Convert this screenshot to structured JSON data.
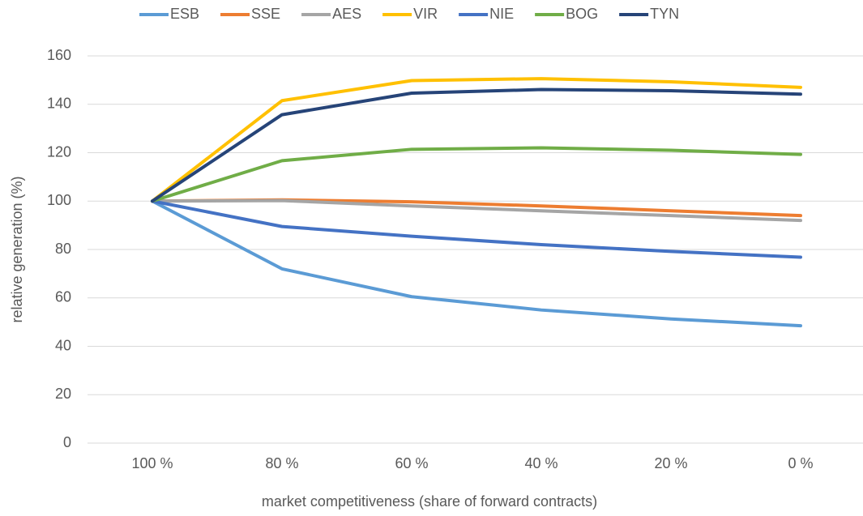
{
  "chart_data": {
    "type": "line",
    "xlabel": "market competitiveness (share of forward contracts)",
    "ylabel": "relative generation (%)",
    "categories": [
      "100 %",
      "80 %",
      "60 %",
      "40 %",
      "20 %",
      "0 %"
    ],
    "series": [
      {
        "name": "ESB",
        "color": "#5b9bd5",
        "values": [
          100,
          72,
          60.5,
          55,
          51.3,
          48.5
        ]
      },
      {
        "name": "SSE",
        "color": "#ed7d31",
        "values": [
          100,
          100.5,
          99.7,
          98,
          96,
          94
        ]
      },
      {
        "name": "AES",
        "color": "#a5a5a5",
        "values": [
          100,
          100.2,
          98,
          96,
          94,
          92
        ]
      },
      {
        "name": "VIR",
        "color": "#ffc000",
        "values": [
          100,
          141.5,
          149.8,
          150.6,
          149.3,
          147
        ]
      },
      {
        "name": "NIE",
        "color": "#4472c4",
        "values": [
          100,
          89.5,
          85.5,
          82,
          79.2,
          76.8
        ]
      },
      {
        "name": "BOG",
        "color": "#70ad47",
        "values": [
          100,
          116.7,
          121.4,
          122,
          121,
          119.3
        ]
      },
      {
        "name": "TYN",
        "color": "#264478",
        "values": [
          100,
          135.7,
          144.6,
          146.1,
          145.6,
          144.2
        ]
      }
    ],
    "ylim": [
      0,
      160
    ],
    "yticks": [
      0,
      20,
      40,
      60,
      80,
      100,
      120,
      140,
      160
    ],
    "grid": true,
    "legend": "top"
  }
}
